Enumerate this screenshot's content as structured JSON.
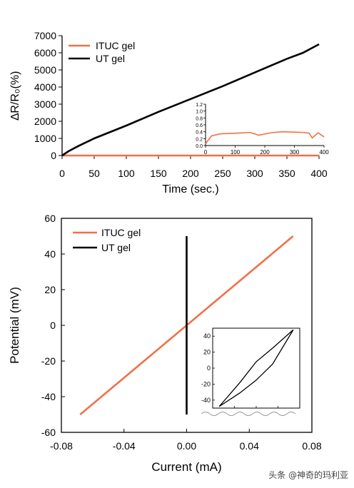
{
  "chart_data": [
    {
      "type": "line",
      "xlabel": "Time (sec.)",
      "ylabel": "∆R/R₀(%)",
      "xlim": [
        0,
        400
      ],
      "ylim": [
        0,
        7000
      ],
      "xticks": [
        "0",
        "50",
        "100",
        "150",
        "200",
        "250",
        "300",
        "350",
        "400"
      ],
      "yticks": [
        "0",
        "1000",
        "2000",
        "3000",
        "4000",
        "5000",
        "6000",
        "7000"
      ],
      "legend_position": "top-left",
      "series": [
        {
          "name": "ITUC gel",
          "color": "#f07048",
          "x": [
            0,
            100,
            200,
            300,
            400
          ],
          "y": [
            0,
            0,
            0,
            0,
            0
          ]
        },
        {
          "name": "UT gel",
          "color": "#000000",
          "x": [
            0,
            10,
            25,
            50,
            100,
            150,
            200,
            250,
            300,
            350,
            375,
            400
          ],
          "y": [
            0,
            250,
            550,
            1000,
            1750,
            2550,
            3300,
            4050,
            4850,
            5650,
            6000,
            6500
          ]
        }
      ],
      "inset": {
        "xlim": [
          0,
          400
        ],
        "ylim": [
          0,
          1.2
        ],
        "xticks": [
          "0",
          "100",
          "200",
          "300",
          "400"
        ],
        "yticks": [
          "0.0",
          "0.2",
          "0.4",
          "0.6",
          "0.8",
          "1.0",
          "1.2"
        ],
        "series": [
          {
            "name": "ITUC gel",
            "color": "#f07048",
            "x": [
              0,
              20,
              50,
              80,
              110,
              150,
              180,
              220,
              260,
              300,
              330,
              350,
              360,
              380,
              400
            ],
            "y": [
              0.05,
              0.28,
              0.34,
              0.35,
              0.36,
              0.38,
              0.3,
              0.37,
              0.4,
              0.39,
              0.38,
              0.36,
              0.22,
              0.37,
              0.25
            ]
          }
        ]
      }
    },
    {
      "type": "line",
      "xlabel": "Current (mA)",
      "ylabel": "Potential (mV)",
      "xlim": [
        -0.08,
        0.08
      ],
      "ylim": [
        -60,
        60
      ],
      "xticks": [
        "-0.08",
        "-0.04",
        "0.00",
        "0.04",
        "0.08"
      ],
      "yticks": [
        "-60",
        "-40",
        "-20",
        "0",
        "20",
        "40",
        "60"
      ],
      "legend_position": "top-left",
      "series": [
        {
          "name": "ITUC gel",
          "color": "#f07048",
          "x": [
            -0.068,
            0.068
          ],
          "y": [
            -50,
            50
          ]
        },
        {
          "name": "UT gel",
          "color": "#000000",
          "x": [
            0,
            0
          ],
          "y": [
            -50,
            50
          ]
        }
      ],
      "inset": {
        "xticks": [
          "",
          "",
          "",
          "",
          ""
        ],
        "yticks": [
          "-40",
          "-20",
          "0",
          "20",
          "40"
        ],
        "ylim": [
          -50,
          50
        ],
        "series": [
          {
            "name": "UT gel",
            "color": "#000000",
            "x": [
              -0.068,
              -0.03,
              0,
              0.03,
              0.068,
              0.03,
              0,
              -0.03,
              -0.068
            ],
            "y": [
              -48,
              -31,
              -15,
              5,
              48,
              25,
              8,
              -18,
              -48
            ]
          }
        ]
      }
    }
  ],
  "watermark": "头条 @神奇的玛利亚"
}
